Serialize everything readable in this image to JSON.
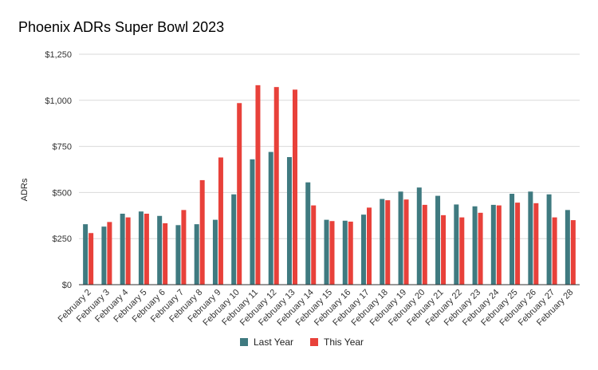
{
  "chart_data": {
    "type": "bar",
    "title": "Phoenix ADRs Super Bowl 2023",
    "xlabel": "",
    "ylabel": "ADRs",
    "ylim": [
      0,
      1250
    ],
    "yticks": [
      0,
      250,
      500,
      750,
      1000,
      1250
    ],
    "ytick_labels": [
      "$0",
      "$250",
      "$500",
      "$750",
      "$1,000",
      "$1,250"
    ],
    "grid": true,
    "legend_position": "bottom-center",
    "categories": [
      "February 2",
      "February 3",
      "February 4",
      "February 5",
      "February 6",
      "February 7",
      "February 8",
      "February 9",
      "February 10",
      "February 11",
      "February 12",
      "February 13",
      "February 14",
      "February 15",
      "February 16",
      "February 17",
      "February 18",
      "February 19",
      "February 20",
      "February 21",
      "February 22",
      "February 23",
      "February 24",
      "February 25",
      "February 26",
      "February 27",
      "February 28"
    ],
    "series": [
      {
        "name": "Last Year",
        "color": "#3F7A80",
        "values": [
          328,
          315,
          385,
          397,
          373,
          323,
          328,
          352,
          490,
          680,
          720,
          692,
          555,
          352,
          347,
          380,
          465,
          505,
          527,
          482,
          435,
          425,
          433,
          493,
          505,
          490,
          405
        ]
      },
      {
        "name": "This Year",
        "color": "#E8413A",
        "values": [
          280,
          340,
          365,
          385,
          333,
          405,
          567,
          690,
          985,
          1082,
          1072,
          1058,
          430,
          345,
          342,
          418,
          458,
          462,
          433,
          377,
          365,
          390,
          430,
          445,
          442,
          365,
          350
        ]
      }
    ]
  }
}
